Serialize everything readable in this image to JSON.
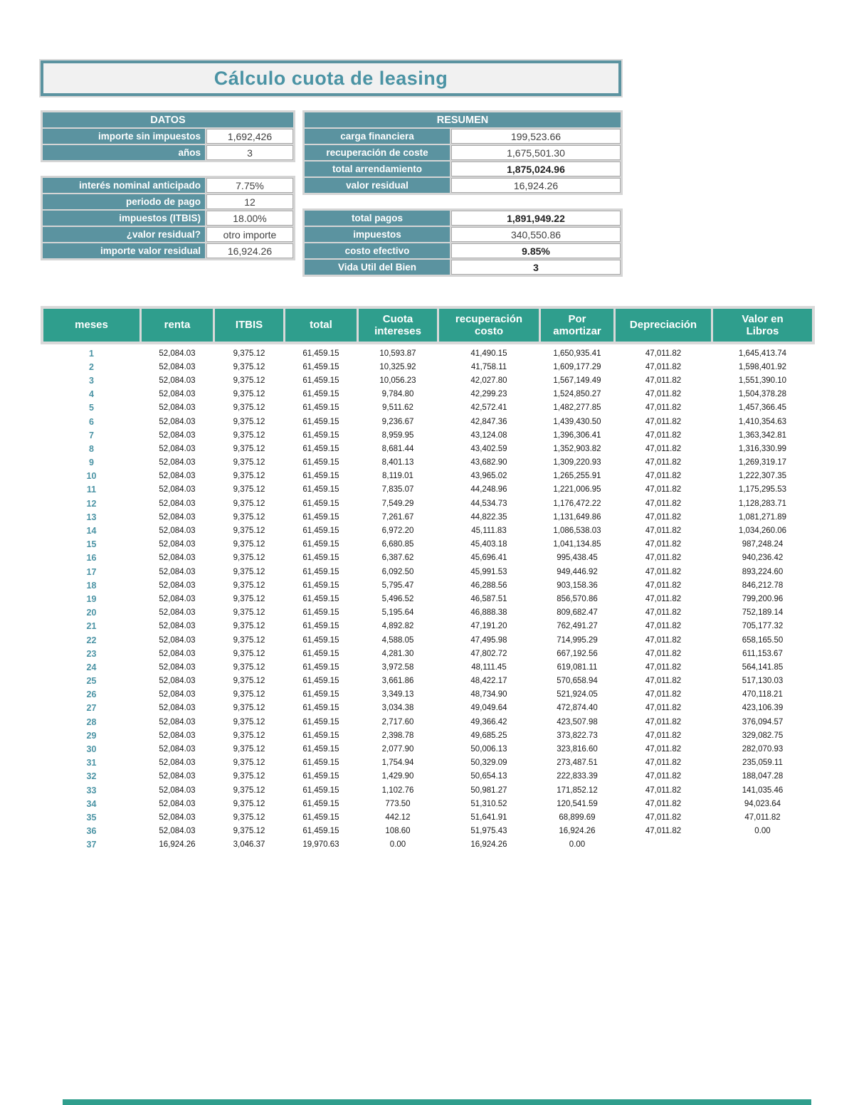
{
  "title": "Cálculo cuota de leasing",
  "colors": {
    "section_header": "#5b93a0",
    "table_header": "#2f9e8d",
    "title_text": "#4a93a4",
    "meses_text": "#4a93a4",
    "value_text": "#3f3f3f"
  },
  "datos": {
    "header": "DATOS",
    "block1": [
      {
        "label": "importe sin impuestos",
        "value": "1,692,426",
        "bold": false
      },
      {
        "label": "años",
        "value": "3",
        "bold": false
      }
    ],
    "block2": [
      {
        "label": "interés nominal anticipado",
        "value": "7.75%",
        "bold": false
      },
      {
        "label": "periodo de pago",
        "value": "12",
        "bold": false
      },
      {
        "label": "impuestos (ITBIS)",
        "value": "18.00%",
        "bold": false
      },
      {
        "label": "¿valor residual?",
        "value": "otro importe",
        "bold": false
      },
      {
        "label": "importe valor residual",
        "value": "16,924.26",
        "bold": false
      }
    ]
  },
  "resumen": {
    "header": "RESUMEN",
    "block1": [
      {
        "label": "carga financiera",
        "value": "199,523.66",
        "bold": false
      },
      {
        "label": "recuperación de coste",
        "value": "1,675,501.30",
        "bold": false
      },
      {
        "label": "total arrendamiento",
        "value": "1,875,024.96",
        "bold": true
      },
      {
        "label": "valor residual",
        "value": "16,924.26",
        "bold": false
      }
    ],
    "block2": [
      {
        "label": "total pagos",
        "value": "1,891,949.22",
        "bold": true
      },
      {
        "label": "impuestos",
        "value": "340,550.86",
        "bold": false
      },
      {
        "label": "costo efectivo",
        "value": "9.85%",
        "bold": true
      },
      {
        "label": "Vida Util del Bien",
        "value": "3",
        "bold": true
      }
    ]
  },
  "table": {
    "headers": [
      "meses",
      "renta",
      "ITBIS",
      "total",
      "Cuota\nintereses",
      "recuperación\ncosto",
      "Por\namortizar",
      "Depreciación",
      "Valor en\nLibros"
    ],
    "rows": [
      [
        "1",
        "52,084.03",
        "9,375.12",
        "61,459.15",
        "10,593.87",
        "41,490.15",
        "1,650,935.41",
        "47,011.82",
        "1,645,413.74"
      ],
      [
        "2",
        "52,084.03",
        "9,375.12",
        "61,459.15",
        "10,325.92",
        "41,758.11",
        "1,609,177.29",
        "47,011.82",
        "1,598,401.92"
      ],
      [
        "3",
        "52,084.03",
        "9,375.12",
        "61,459.15",
        "10,056.23",
        "42,027.80",
        "1,567,149.49",
        "47,011.82",
        "1,551,390.10"
      ],
      [
        "4",
        "52,084.03",
        "9,375.12",
        "61,459.15",
        "9,784.80",
        "42,299.23",
        "1,524,850.27",
        "47,011.82",
        "1,504,378.28"
      ],
      [
        "5",
        "52,084.03",
        "9,375.12",
        "61,459.15",
        "9,511.62",
        "42,572.41",
        "1,482,277.85",
        "47,011.82",
        "1,457,366.45"
      ],
      [
        "6",
        "52,084.03",
        "9,375.12",
        "61,459.15",
        "9,236.67",
        "42,847.36",
        "1,439,430.50",
        "47,011.82",
        "1,410,354.63"
      ],
      [
        "7",
        "52,084.03",
        "9,375.12",
        "61,459.15",
        "8,959.95",
        "43,124.08",
        "1,396,306.41",
        "47,011.82",
        "1,363,342.81"
      ],
      [
        "8",
        "52,084.03",
        "9,375.12",
        "61,459.15",
        "8,681.44",
        "43,402.59",
        "1,352,903.82",
        "47,011.82",
        "1,316,330.99"
      ],
      [
        "9",
        "52,084.03",
        "9,375.12",
        "61,459.15",
        "8,401.13",
        "43,682.90",
        "1,309,220.93",
        "47,011.82",
        "1,269,319.17"
      ],
      [
        "10",
        "52,084.03",
        "9,375.12",
        "61,459.15",
        "8,119.01",
        "43,965.02",
        "1,265,255.91",
        "47,011.82",
        "1,222,307.35"
      ],
      [
        "11",
        "52,084.03",
        "9,375.12",
        "61,459.15",
        "7,835.07",
        "44,248.96",
        "1,221,006.95",
        "47,011.82",
        "1,175,295.53"
      ],
      [
        "12",
        "52,084.03",
        "9,375.12",
        "61,459.15",
        "7,549.29",
        "44,534.73",
        "1,176,472.22",
        "47,011.82",
        "1,128,283.71"
      ],
      [
        "13",
        "52,084.03",
        "9,375.12",
        "61,459.15",
        "7,261.67",
        "44,822.35",
        "1,131,649.86",
        "47,011.82",
        "1,081,271.89"
      ],
      [
        "14",
        "52,084.03",
        "9,375.12",
        "61,459.15",
        "6,972.20",
        "45,111.83",
        "1,086,538.03",
        "47,011.82",
        "1,034,260.06"
      ],
      [
        "15",
        "52,084.03",
        "9,375.12",
        "61,459.15",
        "6,680.85",
        "45,403.18",
        "1,041,134.85",
        "47,011.82",
        "987,248.24"
      ],
      [
        "16",
        "52,084.03",
        "9,375.12",
        "61,459.15",
        "6,387.62",
        "45,696.41",
        "995,438.45",
        "47,011.82",
        "940,236.42"
      ],
      [
        "17",
        "52,084.03",
        "9,375.12",
        "61,459.15",
        "6,092.50",
        "45,991.53",
        "949,446.92",
        "47,011.82",
        "893,224.60"
      ],
      [
        "18",
        "52,084.03",
        "9,375.12",
        "61,459.15",
        "5,795.47",
        "46,288.56",
        "903,158.36",
        "47,011.82",
        "846,212.78"
      ],
      [
        "19",
        "52,084.03",
        "9,375.12",
        "61,459.15",
        "5,496.52",
        "46,587.51",
        "856,570.86",
        "47,011.82",
        "799,200.96"
      ],
      [
        "20",
        "52,084.03",
        "9,375.12",
        "61,459.15",
        "5,195.64",
        "46,888.38",
        "809,682.47",
        "47,011.82",
        "752,189.14"
      ],
      [
        "21",
        "52,084.03",
        "9,375.12",
        "61,459.15",
        "4,892.82",
        "47,191.20",
        "762,491.27",
        "47,011.82",
        "705,177.32"
      ],
      [
        "22",
        "52,084.03",
        "9,375.12",
        "61,459.15",
        "4,588.05",
        "47,495.98",
        "714,995.29",
        "47,011.82",
        "658,165.50"
      ],
      [
        "23",
        "52,084.03",
        "9,375.12",
        "61,459.15",
        "4,281.30",
        "47,802.72",
        "667,192.56",
        "47,011.82",
        "611,153.67"
      ],
      [
        "24",
        "52,084.03",
        "9,375.12",
        "61,459.15",
        "3,972.58",
        "48,111.45",
        "619,081.11",
        "47,011.82",
        "564,141.85"
      ],
      [
        "25",
        "52,084.03",
        "9,375.12",
        "61,459.15",
        "3,661.86",
        "48,422.17",
        "570,658.94",
        "47,011.82",
        "517,130.03"
      ],
      [
        "26",
        "52,084.03",
        "9,375.12",
        "61,459.15",
        "3,349.13",
        "48,734.90",
        "521,924.05",
        "47,011.82",
        "470,118.21"
      ],
      [
        "27",
        "52,084.03",
        "9,375.12",
        "61,459.15",
        "3,034.38",
        "49,049.64",
        "472,874.40",
        "47,011.82",
        "423,106.39"
      ],
      [
        "28",
        "52,084.03",
        "9,375.12",
        "61,459.15",
        "2,717.60",
        "49,366.42",
        "423,507.98",
        "47,011.82",
        "376,094.57"
      ],
      [
        "29",
        "52,084.03",
        "9,375.12",
        "61,459.15",
        "2,398.78",
        "49,685.25",
        "373,822.73",
        "47,011.82",
        "329,082.75"
      ],
      [
        "30",
        "52,084.03",
        "9,375.12",
        "61,459.15",
        "2,077.90",
        "50,006.13",
        "323,816.60",
        "47,011.82",
        "282,070.93"
      ],
      [
        "31",
        "52,084.03",
        "9,375.12",
        "61,459.15",
        "1,754.94",
        "50,329.09",
        "273,487.51",
        "47,011.82",
        "235,059.11"
      ],
      [
        "32",
        "52,084.03",
        "9,375.12",
        "61,459.15",
        "1,429.90",
        "50,654.13",
        "222,833.39",
        "47,011.82",
        "188,047.28"
      ],
      [
        "33",
        "52,084.03",
        "9,375.12",
        "61,459.15",
        "1,102.76",
        "50,981.27",
        "171,852.12",
        "47,011.82",
        "141,035.46"
      ],
      [
        "34",
        "52,084.03",
        "9,375.12",
        "61,459.15",
        "773.50",
        "51,310.52",
        "120,541.59",
        "47,011.82",
        "94,023.64"
      ],
      [
        "35",
        "52,084.03",
        "9,375.12",
        "61,459.15",
        "442.12",
        "51,641.91",
        "68,899.69",
        "47,011.82",
        "47,011.82"
      ],
      [
        "36",
        "52,084.03",
        "9,375.12",
        "61,459.15",
        "108.60",
        "51,975.43",
        "16,924.26",
        "47,011.82",
        "0.00"
      ],
      [
        "37",
        "16,924.26",
        "3,046.37",
        "19,970.63",
        "0.00",
        "16,924.26",
        "0.00",
        "",
        ""
      ]
    ]
  }
}
